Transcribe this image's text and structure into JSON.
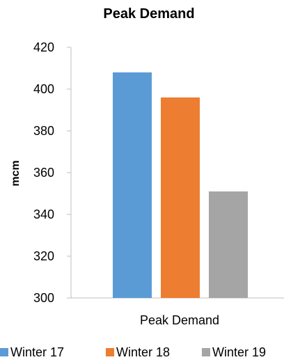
{
  "chart_data": {
    "type": "bar",
    "title": "Peak Demand",
    "xlabel": "",
    "ylabel": "mcm",
    "categories": [
      "Peak Demand"
    ],
    "series": [
      {
        "name": "Winter 17",
        "values": [
          408
        ],
        "color": "#5B9BD5"
      },
      {
        "name": "Winter 18",
        "values": [
          396
        ],
        "color": "#ED7D31"
      },
      {
        "name": "Winter 19",
        "values": [
          351
        ],
        "color": "#A5A5A5"
      }
    ],
    "ylim": [
      300,
      420
    ],
    "yticks": [
      300,
      320,
      340,
      360,
      380,
      400,
      420
    ],
    "grid": false,
    "legend_position": "bottom"
  }
}
